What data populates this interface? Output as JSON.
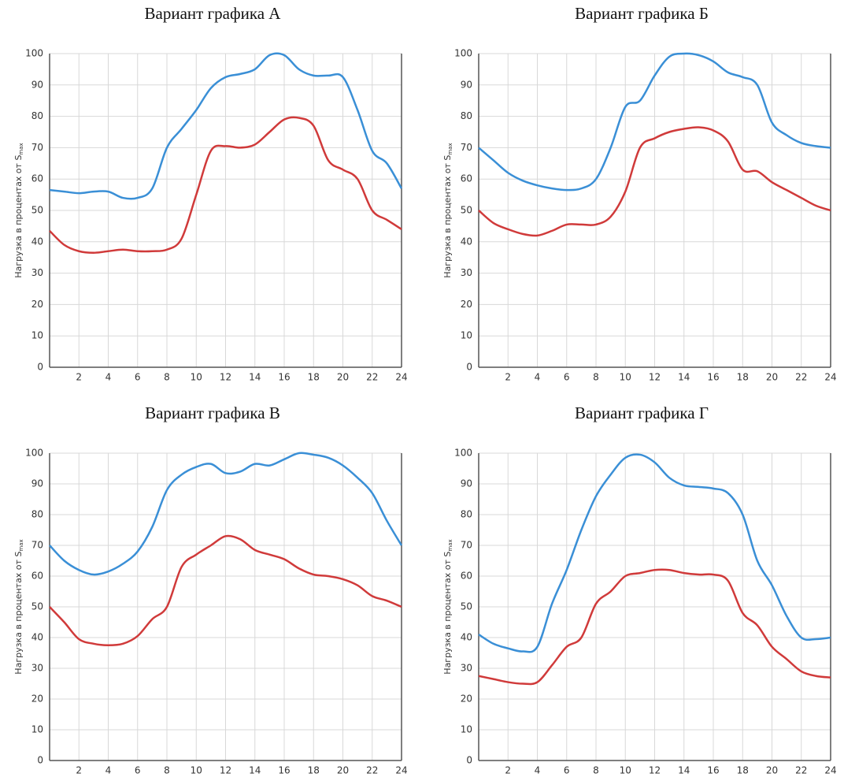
{
  "chart_data": [
    {
      "type": "line",
      "title": "Вариант графика А",
      "ylabel": "Нагрузка в процентах от S",
      "ylabel_subscript": "max",
      "x": [
        0,
        1,
        2,
        3,
        4,
        5,
        6,
        7,
        8,
        9,
        10,
        11,
        12,
        13,
        14,
        15,
        16,
        17,
        18,
        19,
        20,
        21,
        22,
        23,
        24
      ],
      "xlim": [
        0,
        24
      ],
      "xticks": [
        2,
        4,
        6,
        8,
        10,
        12,
        14,
        16,
        18,
        20,
        22,
        24
      ],
      "ylim": [
        0,
        100
      ],
      "yticks": [
        0,
        10,
        20,
        30,
        40,
        50,
        60,
        70,
        80,
        90,
        100
      ],
      "grid": true,
      "series": [
        {
          "color": "#3a8fd6",
          "values": [
            56.5,
            56,
            55.5,
            56,
            56,
            54,
            54,
            57,
            70,
            76,
            82,
            89,
            92.5,
            93.5,
            95,
            99.5,
            99.5,
            95,
            93,
            93,
            92.5,
            82,
            69,
            65,
            57
          ]
        },
        {
          "color": "#d03a3a",
          "values": [
            43.5,
            39,
            37,
            36.5,
            37,
            37.5,
            37,
            37,
            37.5,
            41,
            55,
            69,
            70.5,
            70,
            71,
            75,
            79,
            79.5,
            77,
            66,
            63,
            60,
            50,
            47,
            44
          ]
        }
      ]
    },
    {
      "type": "line",
      "title": "Вариант графика Б",
      "ylabel": "Нагрузка в процентах от S",
      "ylabel_subscript": "max",
      "x": [
        0,
        1,
        2,
        3,
        4,
        5,
        6,
        7,
        8,
        9,
        10,
        11,
        12,
        13,
        14,
        15,
        16,
        17,
        18,
        19,
        20,
        21,
        22,
        23,
        24
      ],
      "xlim": [
        0,
        24
      ],
      "xticks": [
        2,
        4,
        6,
        8,
        10,
        12,
        14,
        16,
        18,
        20,
        22,
        24
      ],
      "ylim": [
        0,
        100
      ],
      "yticks": [
        0,
        10,
        20,
        30,
        40,
        50,
        60,
        70,
        80,
        90,
        100
      ],
      "grid": true,
      "series": [
        {
          "color": "#3a8fd6",
          "values": [
            70,
            66,
            62,
            59.5,
            58,
            57,
            56.5,
            57,
            60,
            70,
            83,
            85,
            93,
            99,
            100,
            99.5,
            97.5,
            94,
            92.5,
            90,
            78,
            74,
            71.5,
            70.5,
            70
          ]
        },
        {
          "color": "#d03a3a",
          "values": [
            50,
            46,
            44,
            42.5,
            42,
            43.5,
            45.5,
            45.5,
            45.5,
            48,
            56,
            70,
            73,
            75,
            76,
            76.5,
            75.5,
            72,
            63,
            62.5,
            59,
            56.5,
            54,
            51.5,
            50
          ]
        }
      ]
    },
    {
      "type": "line",
      "title": "Вариант графика В",
      "ylabel": "Нагрузка в процентах от S",
      "ylabel_subscript": "max",
      "x": [
        0,
        1,
        2,
        3,
        4,
        5,
        6,
        7,
        8,
        9,
        10,
        11,
        12,
        13,
        14,
        15,
        16,
        17,
        18,
        19,
        20,
        21,
        22,
        23,
        24
      ],
      "xlim": [
        0,
        24
      ],
      "xticks": [
        2,
        4,
        6,
        8,
        10,
        12,
        14,
        16,
        18,
        20,
        22,
        24
      ],
      "ylim": [
        0,
        100
      ],
      "yticks": [
        0,
        10,
        20,
        30,
        40,
        50,
        60,
        70,
        80,
        90,
        100
      ],
      "grid": true,
      "series": [
        {
          "color": "#3a8fd6",
          "values": [
            70,
            65,
            62,
            60.5,
            61.5,
            64,
            68,
            76,
            88,
            93,
            95.5,
            96.5,
            93.5,
            94,
            96.5,
            96,
            98,
            100,
            99.5,
            98.5,
            96,
            92,
            87,
            78,
            70
          ]
        },
        {
          "color": "#d03a3a",
          "values": [
            50,
            45,
            39.5,
            38,
            37.5,
            38,
            40.5,
            46,
            50,
            63,
            67,
            70,
            73,
            72,
            68.5,
            67,
            65.5,
            62.5,
            60.5,
            60,
            59,
            57,
            53.5,
            52,
            50
          ]
        }
      ]
    },
    {
      "type": "line",
      "title": "Вариант графика Г",
      "ylabel": "Нагрузка в процентах от S",
      "ylabel_subscript": "max",
      "x": [
        0,
        1,
        2,
        3,
        4,
        5,
        6,
        7,
        8,
        9,
        10,
        11,
        12,
        13,
        14,
        15,
        16,
        17,
        18,
        19,
        20,
        21,
        22,
        23,
        24
      ],
      "xlim": [
        0,
        24
      ],
      "xticks": [
        2,
        4,
        6,
        8,
        10,
        12,
        14,
        16,
        18,
        20,
        22,
        24
      ],
      "ylim": [
        0,
        100
      ],
      "yticks": [
        0,
        10,
        20,
        30,
        40,
        50,
        60,
        70,
        80,
        90,
        100
      ],
      "grid": true,
      "series": [
        {
          "color": "#3a8fd6",
          "values": [
            41,
            38,
            36.5,
            35.5,
            37,
            51,
            62,
            75,
            86,
            93,
            98.5,
            99.5,
            97,
            92,
            89.5,
            89,
            88.5,
            87,
            80,
            65,
            57,
            47,
            40,
            39.5,
            40
          ]
        },
        {
          "color": "#d03a3a",
          "values": [
            27.5,
            26.5,
            25.5,
            25,
            25.5,
            31,
            37,
            40,
            51,
            55,
            60,
            61,
            62,
            62,
            61,
            60.5,
            60.5,
            58.5,
            48,
            44,
            37,
            33,
            29,
            27.5,
            27
          ]
        }
      ]
    }
  ]
}
